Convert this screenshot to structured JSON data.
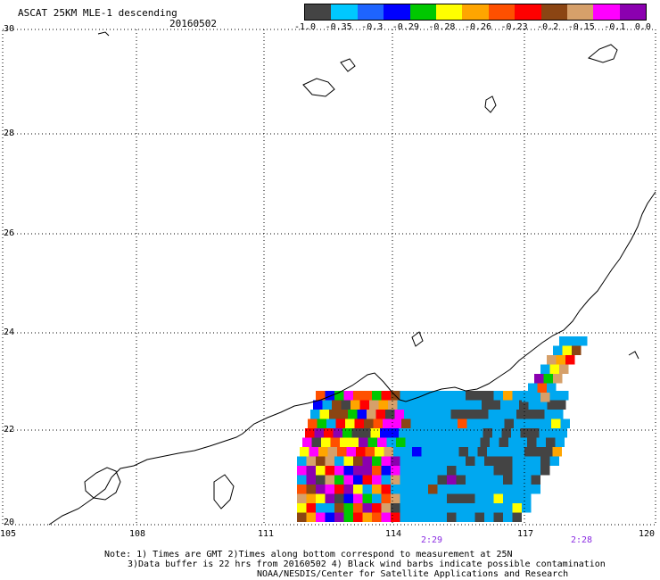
{
  "header": {
    "title": "ASCAT 25KM MLE-1 descending",
    "date": "20160502"
  },
  "colorbar": {
    "colors": [
      "#444444",
      "#00c8ff",
      "#1e64ff",
      "#0000ff",
      "#00c800",
      "#ffff00",
      "#ffa500",
      "#ff5000",
      "#ff0000",
      "#8b4513",
      "#d6a06a",
      "#ff00ff",
      "#8b00b0"
    ],
    "labels": [
      "-1.0",
      "-0.35",
      "-0.3",
      "-0.29",
      "-0.28",
      "-0.26",
      "-0.23",
      "-0.2",
      "-0.15",
      "-0.1",
      "0.0"
    ]
  },
  "axes": {
    "lat_ticks": [
      "30",
      "28",
      "26",
      "24",
      "22",
      "20"
    ],
    "lon_ticks": [
      "105",
      "108",
      "111",
      "114",
      "117",
      "120"
    ],
    "time_labels": [
      "2:29",
      "2:28"
    ]
  },
  "notes": {
    "line1": "Note: 1) Times are GMT 2)Times along bottom correspond to measurement at 25N",
    "line2": "3)Data buffer is 22 hrs from 20160502 4) Black wind barbs indicate possible contamination",
    "line3": "NOAA/NESDIS/Center for Satellite Applications and Research"
  }
}
